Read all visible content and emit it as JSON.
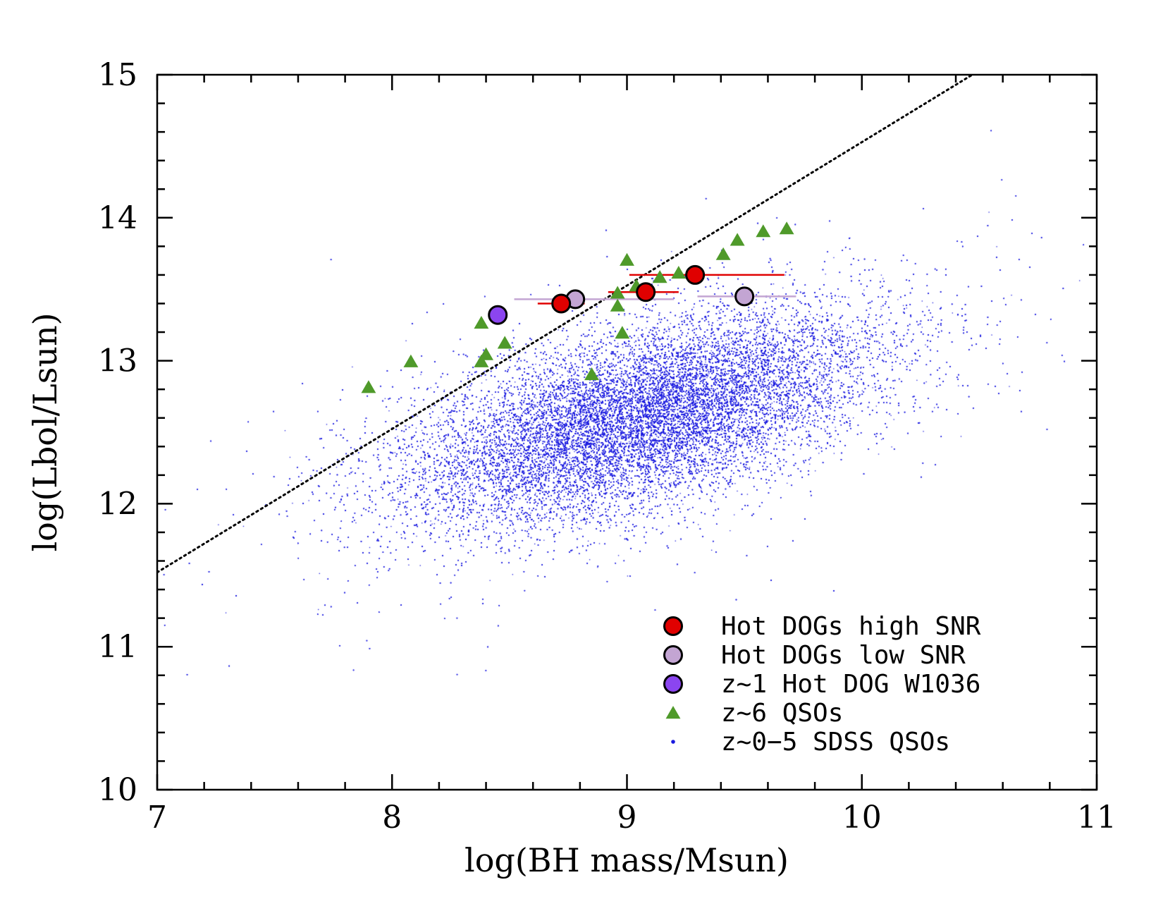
{
  "chart_data": {
    "type": "scatter",
    "title": "",
    "xlabel": "log(BH mass/Msun)",
    "ylabel": "log(Lbol/Lsun)",
    "xlim": [
      7,
      11
    ],
    "ylim": [
      10,
      15
    ],
    "xticks": [
      7,
      8,
      9,
      10,
      11
    ],
    "yticks": [
      10,
      11,
      12,
      13,
      14,
      15
    ],
    "xtick_labels": [
      "7",
      "8",
      "9",
      "10",
      "11"
    ],
    "ytick_labels": [
      "10",
      "11",
      "12",
      "13",
      "14",
      "15"
    ],
    "legend_position": "bottom-right",
    "reference_line": {
      "style": "dotted",
      "color": "#000000",
      "points": [
        [
          7.0,
          11.52
        ],
        [
          10.47,
          15.0
        ]
      ]
    },
    "series": [
      {
        "name": "z~0-5 SDSS QSOs",
        "marker": "dot",
        "color": "#1a1adf",
        "cloud": {
          "center_x": 9.05,
          "center_y": 12.6,
          "sigma_major": 0.55,
          "sigma_minor": 0.27,
          "slope": 0.62,
          "n_points": 60000,
          "x_range": [
            7.0,
            10.95
          ],
          "y_range": [
            10.4,
            14.75
          ]
        }
      },
      {
        "name": "z~6 QSOs",
        "marker": "triangle",
        "color": "#4f9a2a",
        "points": [
          [
            7.9,
            12.81
          ],
          [
            8.08,
            12.99
          ],
          [
            8.38,
            13.26
          ],
          [
            8.38,
            12.99
          ],
          [
            8.4,
            13.04
          ],
          [
            8.48,
            13.12
          ],
          [
            8.85,
            12.9
          ],
          [
            8.96,
            13.38
          ],
          [
            8.96,
            13.47
          ],
          [
            8.98,
            13.19
          ],
          [
            9.0,
            13.7
          ],
          [
            9.04,
            13.52
          ],
          [
            9.14,
            13.58
          ],
          [
            9.22,
            13.61
          ],
          [
            9.41,
            13.74
          ],
          [
            9.47,
            13.84
          ],
          [
            9.58,
            13.9
          ],
          [
            9.68,
            13.92
          ]
        ]
      },
      {
        "name": "Hot DOGs low SNR",
        "marker": "circle",
        "color": "#c3a5d3",
        "points": [
          [
            8.78,
            13.43
          ],
          [
            9.5,
            13.45
          ]
        ],
        "xerr": [
          [
            8.52,
            9.2
          ],
          [
            9.3,
            9.72
          ]
        ]
      },
      {
        "name": "z~1 Hot DOG W1036",
        "marker": "circle",
        "color": "#8b45f0",
        "points": [
          [
            8.45,
            13.32
          ]
        ]
      },
      {
        "name": "Hot DOGs high SNR",
        "marker": "circle",
        "color": "#e00000",
        "points": [
          [
            8.72,
            13.4
          ],
          [
            9.08,
            13.48
          ],
          [
            9.29,
            13.6
          ]
        ],
        "xerr": [
          [
            8.62,
            8.82
          ],
          [
            8.92,
            9.22
          ],
          [
            9.01,
            9.67
          ]
        ]
      }
    ],
    "legend": [
      {
        "label": "Hot DOGs high SNR",
        "marker": "circle",
        "color": "#e00000"
      },
      {
        "label": "Hot DOGs low SNR",
        "marker": "circle",
        "color": "#c3a5d3"
      },
      {
        "label": "z~1 Hot DOG W1036",
        "marker": "circle",
        "color": "#8b45f0"
      },
      {
        "label": "z~6 QSOs",
        "marker": "triangle",
        "color": "#4f9a2a"
      },
      {
        "label": "z~0−5 SDSS QSOs",
        "marker": "dot",
        "color": "#1a1adf"
      }
    ]
  }
}
